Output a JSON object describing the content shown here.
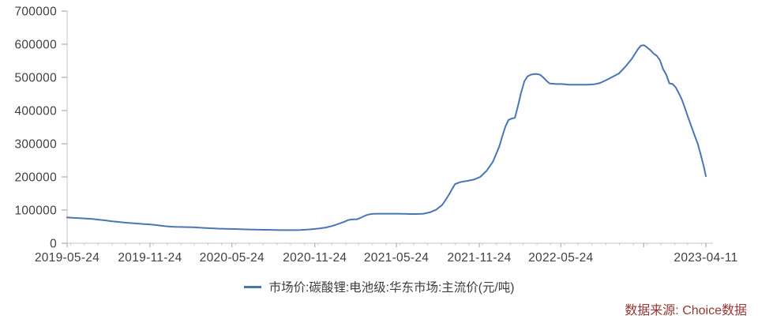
{
  "legend": {
    "label": "市场价:碳酸锂:电池级:华东市场:主流价(元/吨)"
  },
  "source_note": "数据来源: Choice数据",
  "colors": {
    "line": "#4876b4",
    "axis_line": "#c6c6c6",
    "major_tick": "#9e9e9e",
    "axis_label": "#404040",
    "legend_text": "#3d3d3d",
    "source_text": "#953735",
    "background": "#ffffff"
  },
  "chart_data": {
    "type": "line",
    "title": "",
    "xlabel": "",
    "ylabel": "",
    "grid": false,
    "legend_position": "bottom",
    "ylim": [
      0,
      700000
    ],
    "xlim": [
      "2019-05-24",
      "2023-04-11"
    ],
    "y_ticks": [
      0,
      100000,
      200000,
      300000,
      400000,
      500000,
      600000,
      700000
    ],
    "x_ticks": [
      {
        "date": "2019-05-24",
        "label": "2019-05-24"
      },
      {
        "date": "2019-11-24",
        "label": "2019-11-24"
      },
      {
        "date": "2020-05-24",
        "label": "2020-05-24"
      },
      {
        "date": "2020-11-24",
        "label": "2020-11-24"
      },
      {
        "date": "2021-05-24",
        "label": "2021-05-24"
      },
      {
        "date": "2021-11-24",
        "label": "2021-11-24"
      },
      {
        "date": "2022-05-24",
        "label": "2022-05-24"
      },
      {
        "date": "2022-11-24",
        "label": ""
      },
      {
        "date": "2023-04-11",
        "label": "2023-04-11"
      }
    ],
    "series": [
      {
        "name": "市场价:碳酸锂:电池级:华东市场:主流价(元/吨)",
        "color": "#4876b4",
        "points": [
          [
            "2019-05-24",
            77500
          ],
          [
            "2019-06-07",
            76500
          ],
          [
            "2019-06-21",
            75500
          ],
          [
            "2019-07-05",
            74500
          ],
          [
            "2019-07-19",
            73000
          ],
          [
            "2019-08-02",
            71000
          ],
          [
            "2019-08-16",
            69000
          ],
          [
            "2019-08-30",
            66500
          ],
          [
            "2019-09-13",
            64500
          ],
          [
            "2019-09-27",
            62500
          ],
          [
            "2019-10-11",
            61000
          ],
          [
            "2019-10-25",
            59500
          ],
          [
            "2019-11-08",
            58000
          ],
          [
            "2019-11-22",
            57000
          ],
          [
            "2019-12-06",
            55000
          ],
          [
            "2019-12-20",
            52500
          ],
          [
            "2020-01-03",
            50500
          ],
          [
            "2020-01-17",
            49500
          ],
          [
            "2020-01-31",
            49000
          ],
          [
            "2020-02-14",
            48500
          ],
          [
            "2020-02-28",
            48000
          ],
          [
            "2020-03-13",
            47000
          ],
          [
            "2020-03-27",
            46000
          ],
          [
            "2020-04-10",
            45000
          ],
          [
            "2020-04-24",
            44000
          ],
          [
            "2020-05-08",
            43500
          ],
          [
            "2020-05-22",
            43000
          ],
          [
            "2020-06-05",
            42500
          ],
          [
            "2020-06-19",
            42000
          ],
          [
            "2020-07-03",
            41500
          ],
          [
            "2020-07-17",
            41000
          ],
          [
            "2020-07-31",
            40500
          ],
          [
            "2020-08-14",
            40500
          ],
          [
            "2020-08-28",
            40000
          ],
          [
            "2020-09-11",
            39500
          ],
          [
            "2020-09-25",
            39500
          ],
          [
            "2020-10-09",
            39500
          ],
          [
            "2020-10-23",
            40000
          ],
          [
            "2020-11-06",
            41000
          ],
          [
            "2020-11-20",
            42500
          ],
          [
            "2020-12-04",
            44500
          ],
          [
            "2020-12-18",
            47500
          ],
          [
            "2021-01-01",
            52000
          ],
          [
            "2021-01-15",
            58000
          ],
          [
            "2021-01-29",
            65000
          ],
          [
            "2021-02-05",
            69500
          ],
          [
            "2021-02-12",
            71500
          ],
          [
            "2021-02-19",
            72000
          ],
          [
            "2021-02-26",
            72500
          ],
          [
            "2021-03-05",
            76500
          ],
          [
            "2021-03-12",
            81000
          ],
          [
            "2021-03-19",
            85000
          ],
          [
            "2021-03-26",
            87500
          ],
          [
            "2021-04-02",
            88500
          ],
          [
            "2021-04-16",
            89000
          ],
          [
            "2021-04-30",
            89000
          ],
          [
            "2021-05-14",
            89000
          ],
          [
            "2021-05-28",
            89000
          ],
          [
            "2021-06-11",
            88500
          ],
          [
            "2021-06-25",
            88000
          ],
          [
            "2021-07-09",
            88000
          ],
          [
            "2021-07-23",
            89000
          ],
          [
            "2021-08-06",
            93000
          ],
          [
            "2021-08-20",
            101000
          ],
          [
            "2021-09-03",
            116000
          ],
          [
            "2021-09-10",
            130000
          ],
          [
            "2021-09-17",
            145000
          ],
          [
            "2021-09-24",
            162000
          ],
          [
            "2021-10-01",
            178000
          ],
          [
            "2021-10-08",
            182000
          ],
          [
            "2021-10-15",
            185000
          ],
          [
            "2021-10-29",
            188000
          ],
          [
            "2021-11-12",
            192000
          ],
          [
            "2021-11-26",
            200000
          ],
          [
            "2021-12-10",
            218000
          ],
          [
            "2021-12-24",
            245000
          ],
          [
            "2022-01-07",
            290000
          ],
          [
            "2022-01-14",
            322000
          ],
          [
            "2022-01-21",
            352000
          ],
          [
            "2022-01-28",
            372000
          ],
          [
            "2022-02-04",
            376000
          ],
          [
            "2022-02-11",
            378000
          ],
          [
            "2022-02-18",
            415000
          ],
          [
            "2022-02-25",
            455000
          ],
          [
            "2022-03-04",
            488000
          ],
          [
            "2022-03-11",
            503000
          ],
          [
            "2022-03-18",
            508000
          ],
          [
            "2022-03-25",
            510000
          ],
          [
            "2022-04-01",
            510000
          ],
          [
            "2022-04-08",
            508000
          ],
          [
            "2022-04-15",
            500000
          ],
          [
            "2022-04-22",
            490000
          ],
          [
            "2022-04-29",
            482000
          ],
          [
            "2022-05-13",
            480000
          ],
          [
            "2022-05-27",
            480000
          ],
          [
            "2022-06-10",
            478000
          ],
          [
            "2022-06-24",
            478000
          ],
          [
            "2022-07-08",
            478000
          ],
          [
            "2022-07-22",
            478000
          ],
          [
            "2022-08-05",
            479000
          ],
          [
            "2022-08-19",
            483000
          ],
          [
            "2022-09-02",
            492000
          ],
          [
            "2022-09-16",
            502000
          ],
          [
            "2022-09-30",
            512000
          ],
          [
            "2022-10-14",
            532000
          ],
          [
            "2022-10-28",
            555000
          ],
          [
            "2022-11-11",
            585000
          ],
          [
            "2022-11-18",
            596000
          ],
          [
            "2022-11-25",
            597000
          ],
          [
            "2022-12-02",
            590000
          ],
          [
            "2022-12-09",
            582000
          ],
          [
            "2022-12-16",
            572000
          ],
          [
            "2022-12-23",
            565000
          ],
          [
            "2022-12-30",
            552000
          ],
          [
            "2023-01-06",
            525000
          ],
          [
            "2023-01-13",
            508000
          ],
          [
            "2023-01-20",
            482000
          ],
          [
            "2023-01-27",
            480000
          ],
          [
            "2023-02-03",
            470000
          ],
          [
            "2023-02-10",
            452000
          ],
          [
            "2023-02-17",
            432000
          ],
          [
            "2023-02-24",
            405000
          ],
          [
            "2023-03-03",
            378000
          ],
          [
            "2023-03-10",
            352000
          ],
          [
            "2023-03-17",
            325000
          ],
          [
            "2023-03-24",
            300000
          ],
          [
            "2023-03-31",
            265000
          ],
          [
            "2023-04-07",
            228000
          ],
          [
            "2023-04-11",
            202000
          ]
        ]
      }
    ]
  }
}
